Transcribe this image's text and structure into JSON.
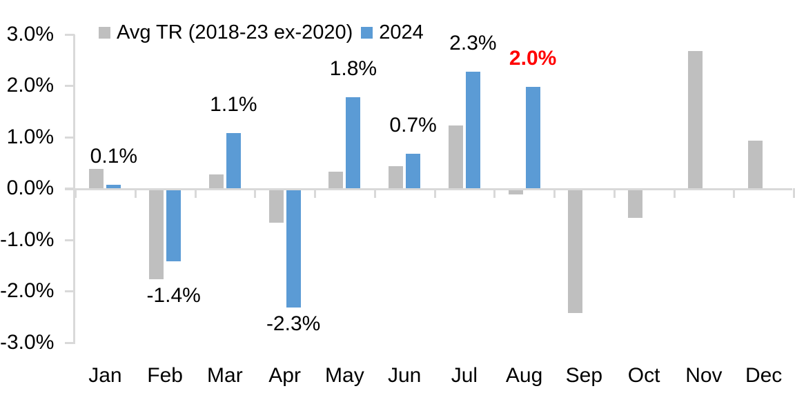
{
  "chart_data": {
    "type": "bar",
    "categories": [
      "Jan",
      "Feb",
      "Mar",
      "Apr",
      "May",
      "Jun",
      "Jul",
      "Aug",
      "Sep",
      "Oct",
      "Nov",
      "Dec"
    ],
    "series": [
      {
        "name": "Avg TR (2018-23 ex-2020)",
        "color": "#BFBFBF",
        "values": [
          0.4,
          -1.75,
          0.3,
          -0.65,
          0.35,
          0.45,
          1.25,
          -0.1,
          -2.4,
          -0.55,
          2.7,
          0.95
        ]
      },
      {
        "name": "2024",
        "color": "#5B9BD5",
        "values": [
          0.1,
          -1.4,
          1.1,
          -2.3,
          1.8,
          0.7,
          2.3,
          2.0,
          null,
          null,
          null,
          null
        ],
        "data_labels": [
          {
            "text": "0.1%"
          },
          {
            "text": "-1.4%"
          },
          {
            "text": "1.1%"
          },
          {
            "text": "-2.3%"
          },
          {
            "text": "1.8%"
          },
          {
            "text": "0.7%"
          },
          {
            "text": "2.3%"
          },
          {
            "text": "2.0%",
            "color": "#FF0000",
            "bold": true
          },
          null,
          null,
          null,
          null
        ]
      }
    ],
    "xlabel": "",
    "ylabel": "",
    "ylim": [
      -3.0,
      3.0
    ],
    "y_ticks": [
      "3.0%",
      "2.0%",
      "1.0%",
      "0.0%",
      "-1.0%",
      "-2.0%",
      "-3.0%"
    ],
    "y_tick_values": [
      3,
      2,
      1,
      0,
      -1,
      -2,
      -3
    ],
    "grid": false,
    "legend_position": "top"
  },
  "colors": {
    "axis": "#D9D9D9",
    "text": "#000000",
    "highlight_label": "#FF0000",
    "background": "#FFFFFF"
  }
}
